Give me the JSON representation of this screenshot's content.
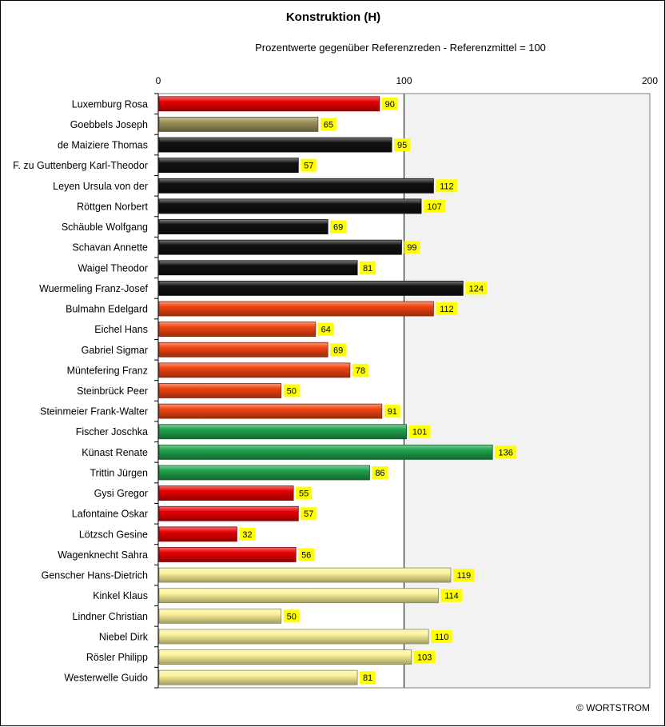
{
  "chart_data": {
    "type": "bar",
    "orientation": "horizontal",
    "title": "Konstruktion (H)",
    "subtitle": "Prozentwerte  gegenüber Referenzreden - Referenzmittel = 100",
    "xlim": [
      0,
      200
    ],
    "xticks": [
      "0",
      "100",
      "200"
    ],
    "reference_line": 100,
    "shaded_region": [
      100,
      200
    ],
    "data_labels_background": "#ffff00",
    "categories": [
      "Luxemburg Rosa",
      "Goebbels Joseph",
      "de Maiziere Thomas",
      "F. zu Guttenberg Karl-Theodor",
      "Leyen Ursula von der",
      "Röttgen Norbert",
      "Schäuble Wolfgang",
      "Schavan Annette",
      "Waigel Theodor",
      "Wuermeling Franz-Josef",
      "Bulmahn Edelgard",
      "Eichel Hans",
      "Gabriel Sigmar",
      "Müntefering Franz",
      "Steinbrück Peer",
      "Steinmeier Frank-Walter",
      "Fischer Joschka",
      "Künast Renate",
      "Trittin Jürgen",
      "Gysi Gregor",
      "Lafontaine Oskar",
      "Lötzsch Gesine",
      "Wagenknecht Sahra",
      "Genscher Hans-Dietrich",
      "Kinkel Klaus",
      "Lindner Christian",
      "Niebel Dirk",
      "Rösler Philipp",
      "Westerwelle Guido"
    ],
    "values": [
      90,
      65,
      95,
      57,
      112,
      107,
      69,
      99,
      81,
      124,
      112,
      64,
      69,
      78,
      50,
      91,
      101,
      136,
      86,
      55,
      57,
      32,
      56,
      119,
      114,
      50,
      110,
      103,
      81
    ],
    "colors": [
      "#e60000",
      "#9b9158",
      "#111111",
      "#111111",
      "#111111",
      "#111111",
      "#111111",
      "#111111",
      "#111111",
      "#111111",
      "#ef4410",
      "#ef4410",
      "#ef4410",
      "#ef4410",
      "#ef4410",
      "#ef4410",
      "#1fa24a",
      "#1fa24a",
      "#1fa24a",
      "#e60000",
      "#e60000",
      "#e60000",
      "#e60000",
      "#fbf39a",
      "#fbf39a",
      "#fbf39a",
      "#fbf39a",
      "#fbf39a",
      "#fbf39a"
    ]
  },
  "footer": {
    "copyright": "© WORTSTROM"
  }
}
